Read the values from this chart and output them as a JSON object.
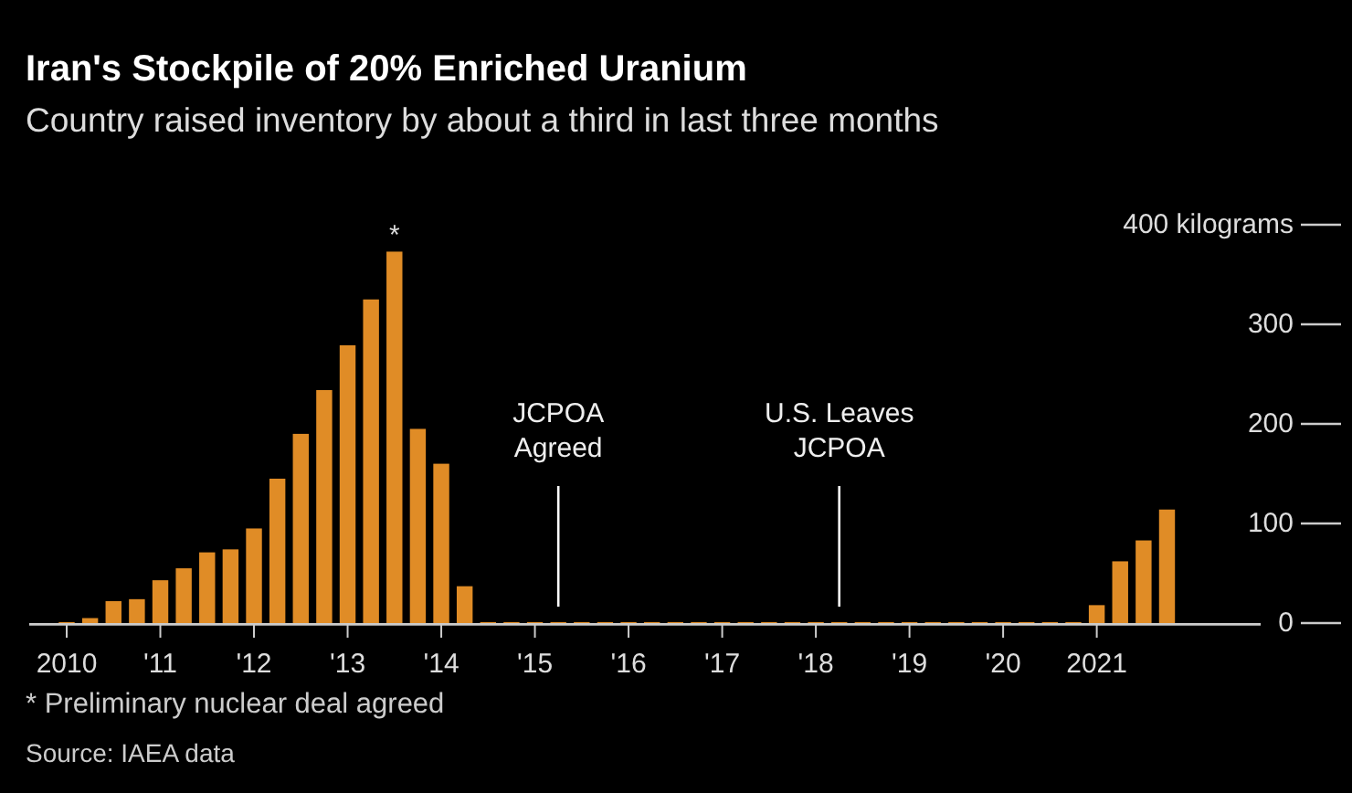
{
  "chart_data": {
    "type": "bar",
    "title": "Iran's Stockpile of 20% Enriched Uranium",
    "subtitle": "Country raised inventory by about a third in last three months",
    "x": [
      2010,
      2010.25,
      2010.5,
      2010.75,
      2011,
      2011.25,
      2011.5,
      2011.75,
      2012,
      2012.25,
      2012.5,
      2012.75,
      2013,
      2013.25,
      2013.5,
      2013.75,
      2014,
      2014.25,
      2014.5,
      2014.75,
      2015,
      2015.25,
      2015.5,
      2015.75,
      2016,
      2016.25,
      2016.5,
      2016.75,
      2017,
      2017.25,
      2017.5,
      2017.75,
      2018,
      2018.25,
      2018.5,
      2018.75,
      2019,
      2019.25,
      2019.5,
      2019.75,
      2020,
      2020.25,
      2020.5,
      2020.75,
      2021,
      2021.25,
      2021.5,
      2021.75
    ],
    "values": [
      1,
      5,
      22,
      24,
      43,
      55,
      71,
      74,
      95,
      145,
      190,
      234,
      279,
      325,
      373,
      195,
      160,
      37,
      1,
      1,
      1,
      1,
      1,
      1,
      1,
      1,
      1,
      1,
      1,
      1,
      1,
      1,
      1,
      1,
      1,
      1,
      1,
      1,
      1,
      1,
      1,
      1,
      1,
      1,
      18,
      62,
      83,
      114
    ],
    "color": "#e08c26",
    "xlim": [
      2009.6,
      2022.75
    ],
    "xticks": [
      {
        "value": 2010,
        "label": "2010"
      },
      {
        "value": 2011,
        "label": "'11"
      },
      {
        "value": 2012,
        "label": "'12"
      },
      {
        "value": 2013,
        "label": "'13"
      },
      {
        "value": 2014,
        "label": "'14"
      },
      {
        "value": 2015,
        "label": "'15"
      },
      {
        "value": 2016,
        "label": "'16"
      },
      {
        "value": 2017,
        "label": "'17"
      },
      {
        "value": 2018,
        "label": "'18"
      },
      {
        "value": 2019,
        "label": "'19"
      },
      {
        "value": 2020,
        "label": "'20"
      },
      {
        "value": 2021,
        "label": "2021"
      }
    ],
    "ylim": [
      0,
      400
    ],
    "yticks": [
      0,
      100,
      200,
      300,
      {
        "value": 400,
        "label": "400 kilograms"
      }
    ],
    "grid": false,
    "ref_lines": [
      {
        "axis": "x",
        "value": 2015.25,
        "label": "JCPOA Agreed",
        "color": "#ffffff"
      },
      {
        "axis": "x",
        "value": 2018.25,
        "label": "U.S. Leaves JCPOA",
        "color": "#ffffff"
      }
    ],
    "annotations": [
      {
        "text": "*",
        "x": 2013.5,
        "y": 373
      },
      "* Preliminary nuclear deal agreed",
      "Source: IAEA data"
    ]
  }
}
